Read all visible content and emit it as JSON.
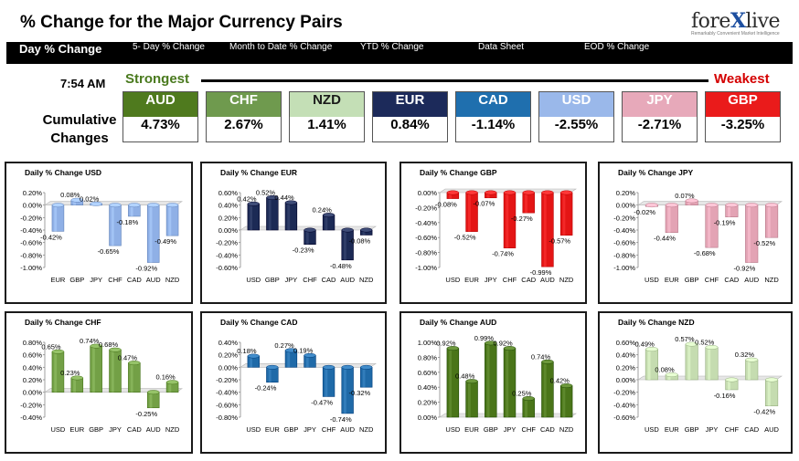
{
  "header": {
    "title": "% Change for the Major Currency Pairs",
    "logo_text_prefix": "fore",
    "logo_text_x": "X",
    "logo_text_suffix": "live",
    "logo_tagline": "Remarkably Convenient Market Intelligence"
  },
  "nav": {
    "tabs": [
      {
        "label": "Day % Change",
        "active": true
      },
      {
        "label": "5- Day % Change",
        "active": false
      },
      {
        "label": "Month to Date % Change",
        "active": false
      },
      {
        "label": "YTD % Change",
        "active": false
      },
      {
        "label": "Data Sheet",
        "active": false
      },
      {
        "label": "EOD % Change",
        "active": false
      }
    ]
  },
  "summary": {
    "time": "7:54 AM",
    "strongest_label": "Strongest",
    "weakest_label": "Weakest",
    "cumulative_label_1": "Cumulative",
    "cumulative_label_2": "Changes",
    "currencies": [
      {
        "code": "AUD",
        "value": "4.73%",
        "bg": "#4f7a1e",
        "fg": "#ffffff"
      },
      {
        "code": "CHF",
        "value": "2.67%",
        "bg": "#6f9a4e",
        "fg": "#ffffff"
      },
      {
        "code": "NZD",
        "value": "1.41%",
        "bg": "#c4dfb6",
        "fg": "#1a1a1a"
      },
      {
        "code": "EUR",
        "value": "0.84%",
        "bg": "#1c2a5a",
        "fg": "#ffffff"
      },
      {
        "code": "CAD",
        "value": "-1.14%",
        "bg": "#1f6fae",
        "fg": "#ffffff"
      },
      {
        "code": "USD",
        "value": "-2.55%",
        "bg": "#9ab8ea",
        "fg": "#ffffff"
      },
      {
        "code": "JPY",
        "value": "-2.71%",
        "bg": "#e7a9ba",
        "fg": "#ffffff"
      },
      {
        "code": "GBP",
        "value": "-3.25%",
        "bg": "#ea1b1b",
        "fg": "#ffffff"
      }
    ]
  },
  "chart_data": [
    {
      "type": "bar",
      "title": "Daily % Change USD",
      "color": "#8fb0e6",
      "categories": [
        "EUR",
        "GBP",
        "JPY",
        "CHF",
        "CAD",
        "AUD",
        "NZD"
      ],
      "values": [
        -0.42,
        0.08,
        0.02,
        -0.65,
        -0.18,
        -0.92,
        -0.49
      ],
      "ylim": [
        -1.0,
        0.2
      ],
      "ticks": [
        0.2,
        0.0,
        -0.2,
        -0.4,
        -0.6,
        -0.8,
        -1.0
      ],
      "tick_labels": [
        "0.20%",
        "0.00%",
        "-0.20%",
        "-0.40%",
        "-0.60%",
        "-0.80%",
        "-1.00%"
      ],
      "data_labels": [
        "-0.42%",
        "0.08%",
        "0.02%",
        "-0.65%",
        "-0.18%",
        "-0.92%",
        "-0.49%"
      ]
    },
    {
      "type": "bar",
      "title": "Daily % Change EUR",
      "color": "#1c2a55",
      "categories": [
        "USD",
        "GBP",
        "JPY",
        "CHF",
        "CAD",
        "AUD",
        "NZD"
      ],
      "values": [
        0.42,
        0.52,
        0.44,
        -0.23,
        0.24,
        -0.48,
        -0.08
      ],
      "ylim": [
        -0.6,
        0.6
      ],
      "ticks": [
        0.6,
        0.4,
        0.2,
        0.0,
        -0.2,
        -0.4,
        -0.6
      ],
      "tick_labels": [
        "0.60%",
        "0.40%",
        "0.20%",
        "0.00%",
        "-0.20%",
        "-0.40%",
        "-0.60%"
      ],
      "data_labels": [
        "0.42%",
        "0.52%",
        "0.44%",
        "-0.23%",
        "0.24%",
        "-0.48%",
        "-0.08%"
      ]
    },
    {
      "type": "bar",
      "title": "Daily % Change GBP",
      "color": "#e41515",
      "categories": [
        "USD",
        "EUR",
        "JPY",
        "CHF",
        "CAD",
        "AUD",
        "NZD"
      ],
      "values": [
        -0.08,
        -0.52,
        -0.07,
        -0.74,
        -0.27,
        -0.99,
        -0.57
      ],
      "ylim": [
        -1.0,
        0.0
      ],
      "ticks": [
        0.0,
        -0.2,
        -0.4,
        -0.6,
        -0.8,
        -1.0
      ],
      "tick_labels": [
        "0.00%",
        "-0.20%",
        "-0.40%",
        "-0.60%",
        "-0.80%",
        "-1.00%"
      ],
      "data_labels": [
        "-0.08%",
        "-0.52%",
        "-0.07%",
        "-0.74%",
        "-0.27%",
        "-0.99%",
        "-0.57%"
      ]
    },
    {
      "type": "bar",
      "title": "Daily % Change JPY",
      "color": "#e3a3b4",
      "categories": [
        "USD",
        "EUR",
        "GBP",
        "CHF",
        "CAD",
        "AUD",
        "NZD"
      ],
      "values": [
        -0.02,
        -0.44,
        0.07,
        -0.68,
        -0.19,
        -0.92,
        -0.52
      ],
      "ylim": [
        -1.0,
        0.2
      ],
      "ticks": [
        0.2,
        0.0,
        -0.2,
        -0.4,
        -0.6,
        -0.8,
        -1.0
      ],
      "tick_labels": [
        "0.20%",
        "0.00%",
        "-0.20%",
        "-0.40%",
        "-0.60%",
        "-0.80%",
        "-1.00%"
      ],
      "data_labels": [
        "-0.02%",
        "-0.44%",
        "0.07%",
        "-0.68%",
        "-0.19%",
        "-0.92%",
        "-0.52%"
      ]
    },
    {
      "type": "bar",
      "title": "Daily % Change CHF",
      "color": "#73a046",
      "categories": [
        "USD",
        "EUR",
        "GBP",
        "JPY",
        "CAD",
        "AUD",
        "NZD"
      ],
      "values": [
        0.65,
        0.23,
        0.74,
        0.68,
        0.47,
        -0.25,
        0.16
      ],
      "ylim": [
        -0.4,
        0.8
      ],
      "ticks": [
        0.8,
        0.6,
        0.4,
        0.2,
        0.0,
        -0.2,
        -0.4
      ],
      "tick_labels": [
        "0.80%",
        "0.60%",
        "0.40%",
        "0.20%",
        "0.00%",
        "-0.20%",
        "-0.40%"
      ],
      "data_labels": [
        "0.65%",
        "0.23%",
        "0.74%",
        "0.68%",
        "0.47%",
        "-0.25%",
        "0.16%"
      ]
    },
    {
      "type": "bar",
      "title": "Daily % Change CAD",
      "color": "#1f6aa8",
      "categories": [
        "USD",
        "EUR",
        "GBP",
        "JPY",
        "CHF",
        "AUD",
        "NZD"
      ],
      "values": [
        0.18,
        -0.24,
        0.27,
        0.19,
        -0.47,
        -0.74,
        -0.32
      ],
      "ylim": [
        -0.8,
        0.4
      ],
      "ticks": [
        0.4,
        0.2,
        0.0,
        -0.2,
        -0.4,
        -0.6,
        -0.8
      ],
      "tick_labels": [
        "0.40%",
        "0.20%",
        "0.00%",
        "-0.20%",
        "-0.40%",
        "-0.60%",
        "-0.80%"
      ],
      "data_labels": [
        "0.18%",
        "-0.24%",
        "0.27%",
        "0.19%",
        "-0.47%",
        "-0.74%",
        "-0.32%"
      ]
    },
    {
      "type": "bar",
      "title": "Daily % Change AUD",
      "color": "#4a7519",
      "categories": [
        "USD",
        "EUR",
        "GBP",
        "JPY",
        "CHF",
        "CAD",
        "NZD"
      ],
      "values": [
        0.92,
        0.48,
        0.99,
        0.92,
        0.25,
        0.74,
        0.42
      ],
      "ylim": [
        0.0,
        1.0
      ],
      "ticks": [
        1.0,
        0.8,
        0.6,
        0.4,
        0.2,
        0.0
      ],
      "tick_labels": [
        "1.00%",
        "0.80%",
        "0.60%",
        "0.40%",
        "0.20%",
        "0.00%"
      ],
      "data_labels": [
        "0.92%",
        "0.48%",
        "0.99%",
        "0.92%",
        "0.25%",
        "0.74%",
        "0.42%"
      ]
    },
    {
      "type": "bar",
      "title": "Daily % Change NZD",
      "color": "#c5dcb0",
      "categories": [
        "USD",
        "EUR",
        "GBP",
        "JPY",
        "CHF",
        "CAD",
        "AUD"
      ],
      "values": [
        0.49,
        0.08,
        0.57,
        0.52,
        -0.16,
        0.32,
        -0.42
      ],
      "ylim": [
        -0.6,
        0.6
      ],
      "ticks": [
        0.6,
        0.4,
        0.2,
        0.0,
        -0.2,
        -0.4,
        -0.6
      ],
      "tick_labels": [
        "0.60%",
        "0.40%",
        "0.20%",
        "0.00%",
        "-0.20%",
        "-0.40%",
        "-0.60%"
      ],
      "data_labels": [
        "0.49%",
        "0.08%",
        "0.57%",
        "0.52%",
        "-0.16%",
        "0.32%",
        "-0.42%"
      ]
    }
  ]
}
